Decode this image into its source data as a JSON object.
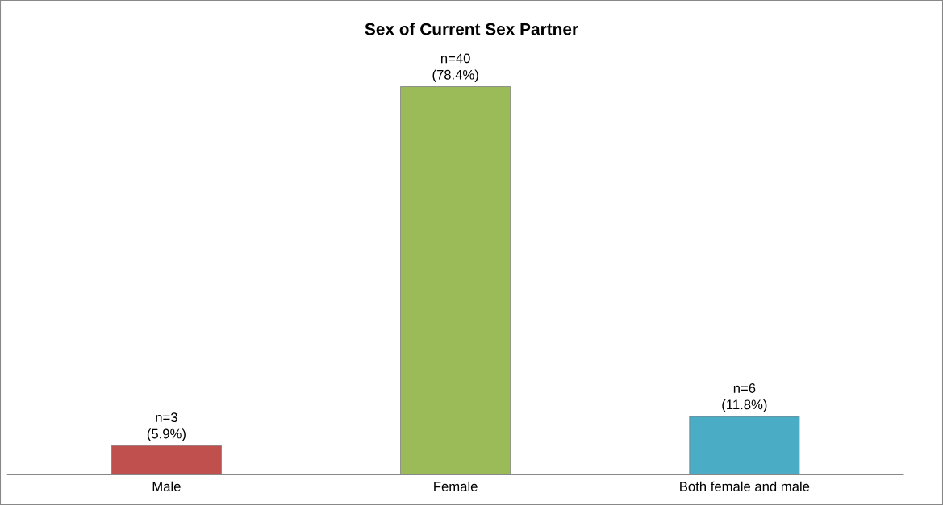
{
  "chart_data": {
    "type": "bar",
    "title": "Sex of Current Sex Partner",
    "categories": [
      "Male",
      "Female",
      "Both female and male"
    ],
    "values": [
      3,
      40,
      6
    ],
    "colors": [
      "#c0504d",
      "#9bbb59",
      "#4bacc6"
    ],
    "value_labels": [
      "n=3\n(5.9%)",
      "n=40\n(78.4%)",
      "n=6\n(11.8%)"
    ],
    "grid": false,
    "legend": false
  }
}
